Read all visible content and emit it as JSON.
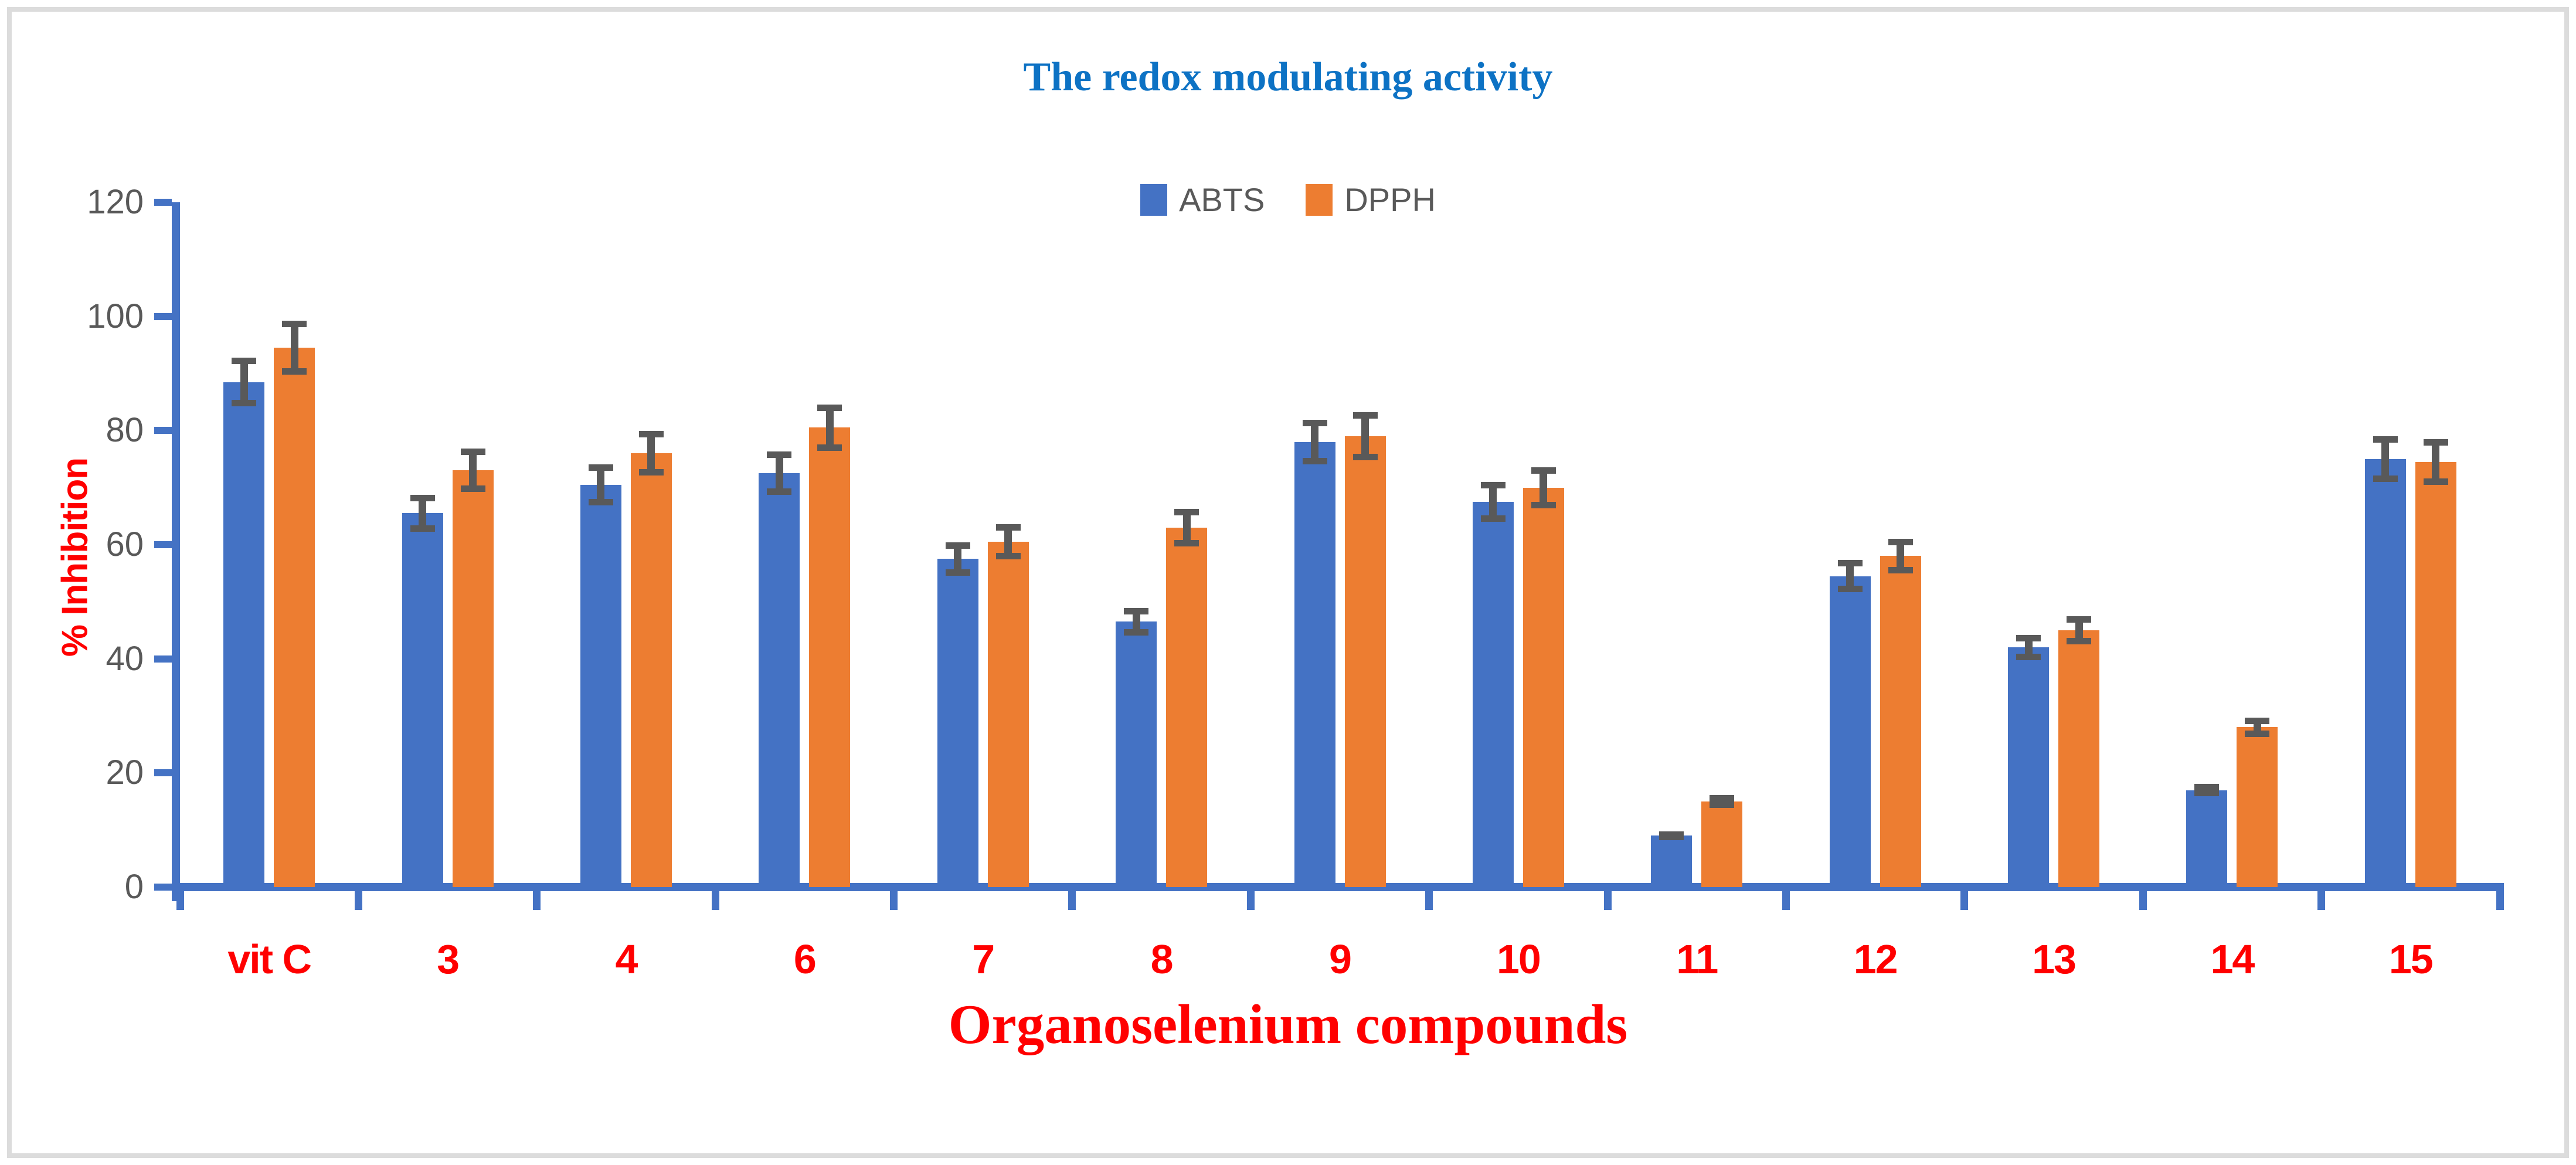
{
  "chart_data": {
    "type": "bar",
    "title": "The redox modulating activity",
    "xlabel": "Organoselenium compounds",
    "ylabel": "% Inhibition",
    "categories": [
      "vit C",
      "3",
      "4",
      "6",
      "7",
      "8",
      "9",
      "10",
      "11",
      "12",
      "13",
      "14",
      "15"
    ],
    "series": [
      {
        "name": "ABTS",
        "color": "#4472C4",
        "values": [
          88.5,
          65.5,
          70.5,
          72.5,
          57.5,
          46.5,
          78,
          67.5,
          9,
          54.5,
          42,
          17,
          75
        ],
        "errors": [
          4.3,
          3.2,
          3.6,
          3.8,
          2.9,
          2.4,
          3.9,
          3.5,
          0.8,
          2.8,
          2.2,
          1.1,
          4
        ]
      },
      {
        "name": "DPPH",
        "color": "#ED7D31",
        "values": [
          94.5,
          73,
          76,
          80.5,
          60.5,
          63,
          79,
          70,
          15,
          58,
          45,
          28,
          74.5
        ],
        "errors": [
          4.7,
          3.8,
          3.9,
          4.1,
          3.1,
          3.3,
          4.2,
          3.6,
          1.1,
          3,
          2.5,
          1.7,
          4
        ]
      }
    ],
    "ylim": [
      0,
      120
    ],
    "ytick_step": 20,
    "ytick_labels": [
      "0",
      "20",
      "40",
      "60",
      "80",
      "100",
      "120"
    ],
    "legend_position": "top-center",
    "grid": false,
    "error_bars": true
  },
  "colors": {
    "title_text": "#0d72c4",
    "axis_line": "#4472C4",
    "tick_label_text": "#595959",
    "legend_text": "#595959",
    "axis_title_text": "#FF0000",
    "category_label_text": "#FF0000",
    "error_bar": "#595959",
    "figure_border": "#dcdcdc",
    "background": "#ffffff"
  }
}
